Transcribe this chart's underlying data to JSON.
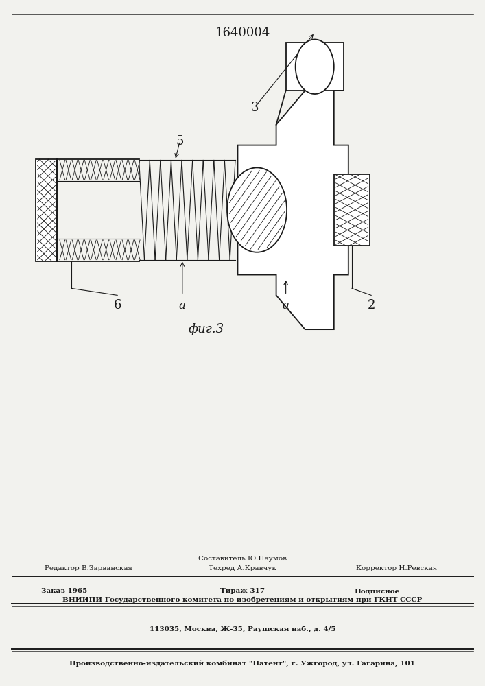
{
  "patent_number": "1640004",
  "fig_label": "фиг.3",
  "background_color": "#f2f2ee",
  "line_color": "#1a1a1a",
  "footer": {
    "line1_left": "Редактор В.Зарванская",
    "line1_center": "Составитель Ю.Наумов",
    "line1_center2": "Техред А.Кравчук",
    "line1_right": "Корректор Н.Ревская",
    "line2_left": "Заказ 1965",
    "line2_center": "Тираж 317",
    "line2_right": "Подписное",
    "line3": "ВНИИПИ Государственного комитета по изобретениям и открытиям при ГКНТ СССР",
    "line4": "113035, Москва, Ж-35, Раушская наб., д. 4/5",
    "line5": "Производственно-издательский комбинат \"Патент\", г. Ужгород, ул. Гагарина, 101"
  }
}
